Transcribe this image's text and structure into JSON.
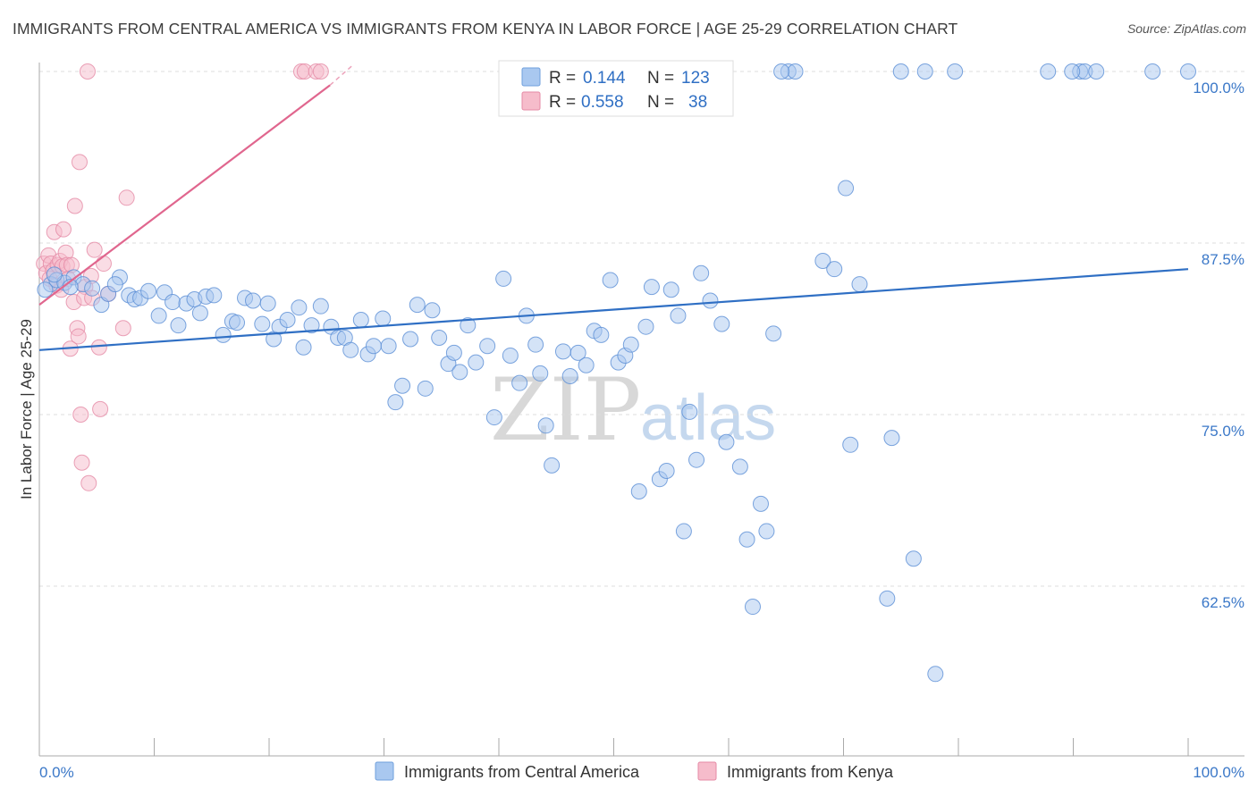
{
  "title": "IMMIGRANTS FROM CENTRAL AMERICA VS IMMIGRANTS FROM KENYA IN LABOR FORCE | AGE 25-29 CORRELATION CHART",
  "source": "Source: ZipAtlas.com",
  "watermark": {
    "zip": "ZIP",
    "atlas": "atlas"
  },
  "legend": {
    "rows": [
      {
        "r_label": "R =",
        "r_value": "0.144",
        "n_label": "N =",
        "n_value": "123",
        "color": "#a9c8f0"
      },
      {
        "r_label": "R =",
        "r_value": "0.558",
        "n_label": "N =",
        "n_value": "38",
        "color": "#f6bccb"
      }
    ]
  },
  "bottom_legend": [
    {
      "label": "Immigrants from Central America",
      "color": "#a9c8f0"
    },
    {
      "label": "Immigrants from Kenya",
      "color": "#f6bccb"
    }
  ],
  "chart_data": {
    "type": "scatter",
    "title": "IMMIGRANTS FROM CENTRAL AMERICA VS IMMIGRANTS FROM KENYA IN LABOR FORCE | AGE 25-29 CORRELATION CHART",
    "xlabel": "",
    "ylabel": "In Labor Force | Age 25-29",
    "xlim": [
      0,
      100
    ],
    "ylim": [
      52,
      102
    ],
    "x_tick_labels": [
      "0.0%",
      "100.0%"
    ],
    "y_ticks": [
      62.5,
      75.0,
      87.5,
      100.0
    ],
    "y_tick_labels": [
      "62.5%",
      "75.0%",
      "87.5%",
      "100.0%"
    ],
    "colors": {
      "blue_fill": "#a9c8f0",
      "blue_line": "#2f6fc4",
      "pink_fill": "#f6bccb",
      "pink_line": "#e0668e",
      "tick": "#3b78c8"
    },
    "series": [
      {
        "name": "Immigrants from Central America",
        "trend": {
          "x0": 0,
          "y0": 79.7,
          "x1": 100,
          "y1": 85.6
        },
        "points": [
          [
            1.0,
            84.5
          ],
          [
            1.5,
            84.8
          ],
          [
            2.2,
            84.6
          ],
          [
            3.0,
            85.0
          ],
          [
            3.8,
            84.5
          ],
          [
            4.6,
            84.2
          ],
          [
            5.4,
            83.0
          ],
          [
            6.0,
            83.8
          ],
          [
            7.0,
            85.0
          ],
          [
            7.8,
            83.7
          ],
          [
            8.3,
            83.4
          ],
          [
            8.8,
            83.5
          ],
          [
            9.5,
            84.0
          ],
          [
            10.4,
            82.2
          ],
          [
            10.9,
            83.9
          ],
          [
            11.6,
            83.2
          ],
          [
            12.1,
            81.5
          ],
          [
            12.8,
            83.1
          ],
          [
            13.5,
            83.4
          ],
          [
            14.0,
            82.4
          ],
          [
            14.5,
            83.6
          ],
          [
            15.2,
            83.7
          ],
          [
            16.0,
            80.8
          ],
          [
            16.8,
            81.8
          ],
          [
            17.2,
            81.7
          ],
          [
            17.9,
            83.5
          ],
          [
            18.6,
            83.3
          ],
          [
            19.4,
            81.6
          ],
          [
            19.9,
            83.1
          ],
          [
            20.4,
            80.5
          ],
          [
            20.9,
            81.4
          ],
          [
            21.6,
            81.9
          ],
          [
            22.6,
            82.8
          ],
          [
            23.0,
            79.9
          ],
          [
            23.7,
            81.5
          ],
          [
            24.5,
            82.9
          ],
          [
            25.4,
            81.4
          ],
          [
            26.0,
            80.6
          ],
          [
            26.6,
            80.6
          ],
          [
            27.1,
            79.7
          ],
          [
            28.0,
            81.9
          ],
          [
            28.6,
            79.4
          ],
          [
            29.1,
            80.0
          ],
          [
            29.9,
            82.0
          ],
          [
            30.4,
            80.0
          ],
          [
            31.0,
            75.9
          ],
          [
            31.6,
            77.1
          ],
          [
            32.3,
            80.5
          ],
          [
            32.9,
            83.0
          ],
          [
            33.6,
            76.9
          ],
          [
            34.2,
            82.6
          ],
          [
            34.8,
            80.6
          ],
          [
            35.6,
            78.7
          ],
          [
            36.1,
            79.5
          ],
          [
            36.6,
            78.1
          ],
          [
            37.3,
            81.5
          ],
          [
            38.0,
            78.8
          ],
          [
            39.0,
            80.0
          ],
          [
            39.6,
            74.8
          ],
          [
            40.4,
            84.9
          ],
          [
            41.0,
            79.3
          ],
          [
            41.8,
            77.3
          ],
          [
            42.4,
            82.2
          ],
          [
            43.2,
            80.1
          ],
          [
            43.6,
            78.0
          ],
          [
            44.1,
            74.2
          ],
          [
            44.6,
            71.3
          ],
          [
            45.6,
            79.6
          ],
          [
            46.2,
            77.8
          ],
          [
            46.9,
            79.5
          ],
          [
            47.6,
            78.6
          ],
          [
            48.3,
            81.1
          ],
          [
            48.9,
            80.8
          ],
          [
            49.7,
            84.8
          ],
          [
            50.4,
            78.8
          ],
          [
            51.0,
            79.3
          ],
          [
            51.5,
            80.1
          ],
          [
            52.2,
            69.4
          ],
          [
            52.8,
            81.4
          ],
          [
            53.3,
            84.3
          ],
          [
            54.0,
            70.3
          ],
          [
            54.6,
            70.9
          ],
          [
            55.0,
            84.1
          ],
          [
            55.6,
            82.2
          ],
          [
            56.1,
            66.5
          ],
          [
            56.6,
            75.2
          ],
          [
            57.2,
            71.7
          ],
          [
            57.6,
            85.3
          ],
          [
            58.4,
            83.3
          ],
          [
            59.4,
            81.6
          ],
          [
            59.8,
            73.0
          ],
          [
            61.0,
            71.2
          ],
          [
            61.6,
            65.9
          ],
          [
            62.1,
            61.0
          ],
          [
            62.8,
            68.5
          ],
          [
            63.3,
            66.5
          ],
          [
            63.9,
            80.9
          ],
          [
            65.2,
            100.0
          ],
          [
            65.8,
            100.0
          ],
          [
            68.2,
            86.2
          ],
          [
            69.2,
            85.6
          ],
          [
            70.2,
            91.5
          ],
          [
            70.6,
            72.8
          ],
          [
            71.4,
            84.5
          ],
          [
            73.8,
            61.6
          ],
          [
            74.2,
            73.3
          ],
          [
            75.0,
            100.0
          ],
          [
            76.1,
            64.5
          ],
          [
            77.1,
            100.0
          ],
          [
            78.0,
            56.1
          ],
          [
            79.7,
            100.0
          ],
          [
            87.8,
            100.0
          ],
          [
            90.6,
            100.0
          ],
          [
            91.0,
            100.0
          ],
          [
            92.0,
            100.0
          ],
          [
            100.0,
            100.0
          ],
          [
            96.9,
            100.0
          ],
          [
            64.6,
            100.0
          ],
          [
            89.9,
            100.0
          ],
          [
            1.3,
            85.2
          ],
          [
            0.5,
            84.1
          ],
          [
            2.7,
            84.3
          ],
          [
            6.6,
            84.5
          ]
        ]
      },
      {
        "name": "Immigrants from Kenya",
        "trend": {
          "x0": 0,
          "y0": 83.0,
          "x1": 25.3,
          "y1": 99.0
        },
        "trend_dashed": {
          "x0": 25.3,
          "y0": 99.0,
          "x1": 27.2,
          "y1": 100.4
        },
        "points": [
          [
            0.4,
            86.0
          ],
          [
            0.6,
            85.3
          ],
          [
            0.8,
            86.6
          ],
          [
            0.9,
            84.9
          ],
          [
            1.0,
            86.0
          ],
          [
            1.2,
            85.5
          ],
          [
            1.3,
            88.3
          ],
          [
            1.5,
            84.4
          ],
          [
            1.6,
            85.9
          ],
          [
            1.8,
            86.2
          ],
          [
            1.9,
            84.1
          ],
          [
            2.0,
            85.8
          ],
          [
            2.1,
            88.5
          ],
          [
            2.3,
            86.8
          ],
          [
            2.4,
            85.9
          ],
          [
            2.5,
            84.9
          ],
          [
            2.7,
            79.8
          ],
          [
            2.8,
            85.9
          ],
          [
            3.0,
            83.2
          ],
          [
            3.1,
            90.2
          ],
          [
            3.3,
            81.3
          ],
          [
            3.4,
            80.7
          ],
          [
            3.5,
            93.4
          ],
          [
            3.6,
            75.0
          ],
          [
            3.7,
            71.5
          ],
          [
            4.0,
            84.3
          ],
          [
            4.3,
            70.0
          ],
          [
            4.5,
            85.1
          ],
          [
            3.9,
            83.5
          ],
          [
            4.6,
            83.5
          ],
          [
            4.8,
            87.0
          ],
          [
            5.2,
            79.9
          ],
          [
            5.3,
            75.4
          ],
          [
            5.6,
            86.0
          ],
          [
            6.0,
            83.8
          ],
          [
            7.3,
            81.3
          ],
          [
            7.6,
            90.8
          ],
          [
            22.8,
            100.0
          ]
        ]
      }
    ],
    "extra_top_points_kenya": [
      [
        4.2,
        100.0
      ],
      [
        23.1,
        100.0
      ],
      [
        24.1,
        100.0
      ],
      [
        24.5,
        100.0
      ]
    ]
  }
}
